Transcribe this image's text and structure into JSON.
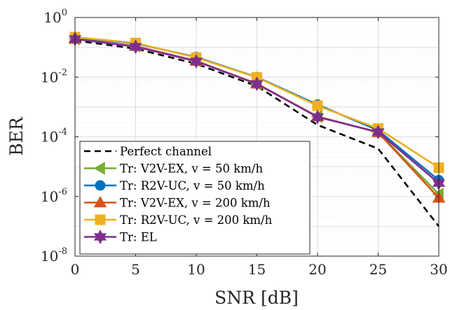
{
  "chart_data": {
    "type": "line",
    "xlabel": "SNR [dB]",
    "ylabel": "BER",
    "x": [
      0,
      5,
      10,
      15,
      20,
      25,
      30
    ],
    "xlim": [
      0,
      30
    ],
    "ylim": [
      1e-08,
      1
    ],
    "yscale": "log",
    "grid": true,
    "legend_position": "bottom-left",
    "xticks": [
      0,
      5,
      10,
      15,
      20,
      25,
      30
    ],
    "yticks": [
      {
        "base": "10",
        "exp": "-8",
        "value": 1e-08
      },
      {
        "base": "10",
        "exp": "-6",
        "value": 1e-06
      },
      {
        "base": "10",
        "exp": "-4",
        "value": 0.0001
      },
      {
        "base": "10",
        "exp": "-2",
        "value": 0.01
      },
      {
        "base": "10",
        "exp": "0",
        "value": 1
      }
    ],
    "series": [
      {
        "name": "Perfect channel",
        "color": "#000000",
        "line": "dashed",
        "marker": "none",
        "values": [
          0.17,
          0.09,
          0.028,
          0.005,
          0.00025,
          4e-05,
          1e-07
        ]
      },
      {
        "name": "Tr: V2V-EX, v = 50 km/h",
        "color": "#77AC30",
        "line": "solid",
        "marker": "triangle-left",
        "values": [
          0.19,
          0.11,
          0.035,
          0.0058,
          0.00048,
          0.00014,
          1.2e-06
        ]
      },
      {
        "name": "Tr: R2V-UC, v = 50 km/h",
        "color": "#0072BD",
        "line": "solid",
        "marker": "circle",
        "values": [
          0.21,
          0.135,
          0.047,
          0.01,
          0.0012,
          0.000165,
          3.5e-06
        ]
      },
      {
        "name": "Tr: V2V-EX, v = 200 km/h",
        "color": "#D95319",
        "line": "solid",
        "marker": "triangle-up",
        "values": [
          0.19,
          0.11,
          0.035,
          0.006,
          0.00048,
          0.00014,
          9e-07
        ]
      },
      {
        "name": "Tr: R2V-UC, v = 200 km/h",
        "color": "#EDB120",
        "line": "solid",
        "marker": "square",
        "values": [
          0.22,
          0.14,
          0.045,
          0.0098,
          0.0011,
          0.00019,
          9.2e-06
        ]
      },
      {
        "name": "Tr: EL",
        "color": "#7E2F8E",
        "line": "solid",
        "marker": "hexagram",
        "values": [
          0.19,
          0.105,
          0.034,
          0.006,
          0.00046,
          0.000145,
          2.8e-06
        ]
      }
    ]
  }
}
